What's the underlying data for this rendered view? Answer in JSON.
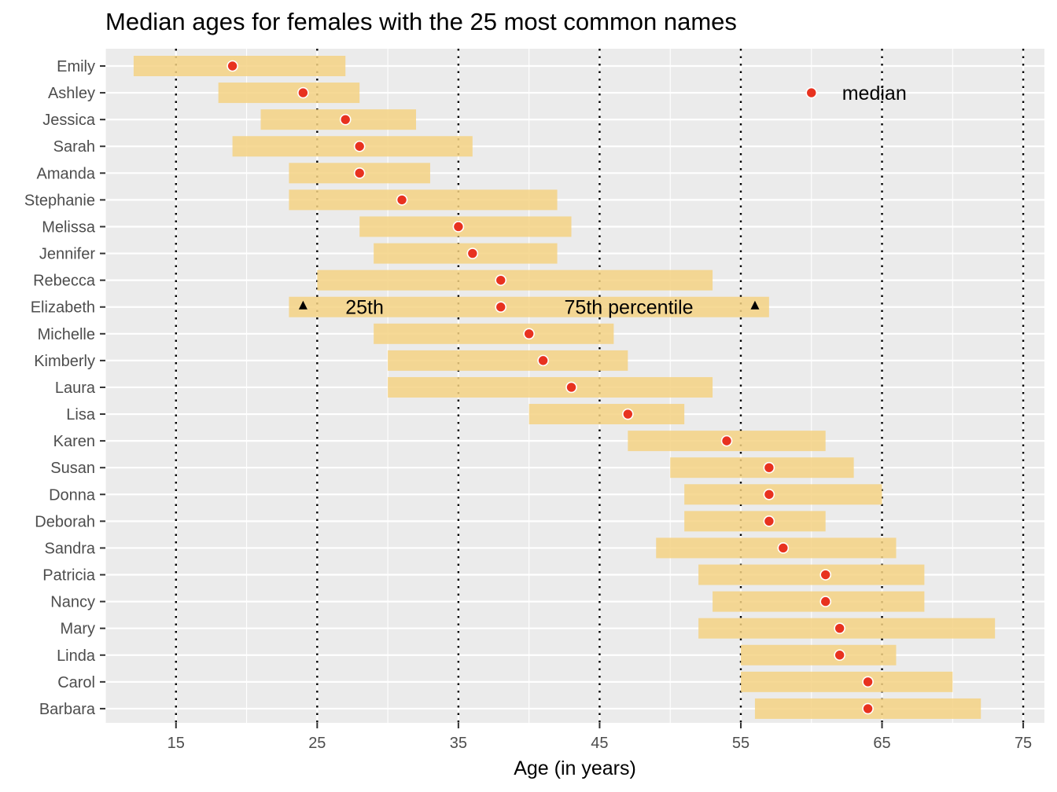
{
  "chart_data": {
    "type": "range-dot",
    "title": "Median ages for females with the 25 most common names",
    "xlabel": "Age (in years)",
    "ylabel": "",
    "xlim": [
      10,
      76.5
    ],
    "xticks": [
      15,
      25,
      35,
      45,
      55,
      65,
      75
    ],
    "reference_lines": [
      15,
      25,
      35,
      45,
      55,
      65,
      75
    ],
    "grid": true,
    "colors": {
      "range_bar": "#f5d284",
      "median_point": "#e8321f",
      "panel_bg": "#ebebeb",
      "grid": "#ffffff",
      "marker": "#000000"
    },
    "rows": [
      {
        "name": "Emily",
        "q25": 12,
        "median": 19,
        "q75": 27
      },
      {
        "name": "Ashley",
        "q25": 18,
        "median": 24,
        "q75": 28
      },
      {
        "name": "Jessica",
        "q25": 21,
        "median": 27,
        "q75": 32
      },
      {
        "name": "Sarah",
        "q25": 19,
        "median": 28,
        "q75": 36
      },
      {
        "name": "Amanda",
        "q25": 23,
        "median": 28,
        "q75": 33
      },
      {
        "name": "Stephanie",
        "q25": 23,
        "median": 31,
        "q75": 42
      },
      {
        "name": "Melissa",
        "q25": 28,
        "median": 35,
        "q75": 43
      },
      {
        "name": "Jennifer",
        "q25": 29,
        "median": 36,
        "q75": 42
      },
      {
        "name": "Rebecca",
        "q25": 25,
        "median": 38,
        "q75": 53
      },
      {
        "name": "Elizabeth",
        "q25": 23,
        "median": 38,
        "q75": 57
      },
      {
        "name": "Michelle",
        "q25": 29,
        "median": 40,
        "q75": 46
      },
      {
        "name": "Kimberly",
        "q25": 30,
        "median": 41,
        "q75": 47
      },
      {
        "name": "Laura",
        "q25": 30,
        "median": 43,
        "q75": 53
      },
      {
        "name": "Lisa",
        "q25": 40,
        "median": 47,
        "q75": 51
      },
      {
        "name": "Karen",
        "q25": 47,
        "median": 54,
        "q75": 61
      },
      {
        "name": "Susan",
        "q25": 50,
        "median": 57,
        "q75": 63
      },
      {
        "name": "Donna",
        "q25": 51,
        "median": 57,
        "q75": 65
      },
      {
        "name": "Deborah",
        "q25": 51,
        "median": 57,
        "q75": 61
      },
      {
        "name": "Sandra",
        "q25": 49,
        "median": 58,
        "q75": 66
      },
      {
        "name": "Patricia",
        "q25": 52,
        "median": 61,
        "q75": 68
      },
      {
        "name": "Nancy",
        "q25": 53,
        "median": 61,
        "q75": 68
      },
      {
        "name": "Mary",
        "q25": 52,
        "median": 62,
        "q75": 73
      },
      {
        "name": "Linda",
        "q25": 55,
        "median": 62,
        "q75": 66
      },
      {
        "name": "Carol",
        "q25": 55,
        "median": 64,
        "q75": 70
      },
      {
        "name": "Barbara",
        "q25": 56,
        "median": 64,
        "q75": 72
      }
    ],
    "annotations": {
      "legend_label": "median",
      "legend_point": {
        "x": 60,
        "row": "Ashley"
      },
      "q25_label": "25th",
      "q25_label_x": 27,
      "q75_label": "75th percentile",
      "q75_label_x": 42.5,
      "marker_row": "Elizabeth",
      "marker_q25_x": 24,
      "marker_q75_x": 56
    }
  }
}
